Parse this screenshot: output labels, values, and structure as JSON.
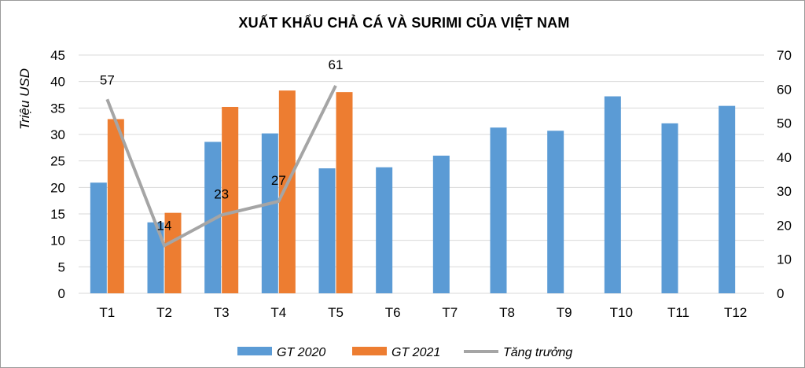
{
  "chart_data": {
    "type": "bar",
    "title": "XUẤT KHẨU CHẢ CÁ VÀ SURIMI CỦA VIỆT NAM",
    "ylabel": "Triệu USD",
    "ylim": [
      0,
      45
    ],
    "y2lim": [
      0,
      70
    ],
    "yticks": [
      "0",
      "5",
      "10",
      "15",
      "20",
      "25",
      "30",
      "35",
      "40",
      "45"
    ],
    "y2ticks": [
      "0",
      "10",
      "20",
      "30",
      "40",
      "50",
      "60",
      "70"
    ],
    "categories": [
      "T1",
      "T2",
      "T3",
      "T4",
      "T5",
      "T6",
      "T7",
      "T8",
      "T9",
      "T10",
      "T11",
      "T12"
    ],
    "series": [
      {
        "name": "GT 2020",
        "type": "bar",
        "axis": "left",
        "color": "#5b9bd5",
        "values": [
          20.9,
          13.4,
          28.6,
          30.2,
          23.6,
          23.8,
          26.0,
          31.3,
          30.7,
          37.2,
          32.1,
          35.4
        ]
      },
      {
        "name": "GT 2021",
        "type": "bar",
        "axis": "left",
        "color": "#ed7d31",
        "values": [
          32.9,
          15.2,
          35.2,
          38.3,
          38.0,
          null,
          null,
          null,
          null,
          null,
          null,
          null
        ]
      },
      {
        "name": "Tăng trưởng",
        "type": "line",
        "axis": "right",
        "color": "#a5a5a5",
        "values": [
          57,
          14,
          23,
          27,
          61,
          null,
          null,
          null,
          null,
          null,
          null,
          null
        ],
        "labels": [
          "57",
          "14",
          "23",
          "27",
          "61"
        ]
      }
    ],
    "grid": true,
    "legend": "bottom"
  }
}
